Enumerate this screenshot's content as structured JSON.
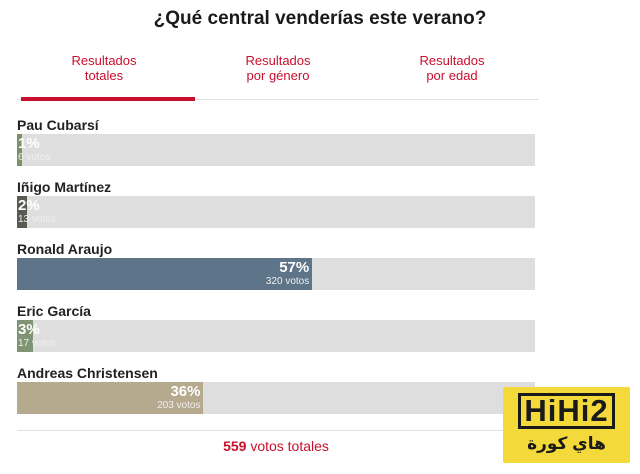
{
  "poll": {
    "title": "¿Qué central venderías este verano?",
    "tabs": [
      {
        "line1": "Resultados",
        "line2": "totales",
        "active": true
      },
      {
        "line1": "Resultados",
        "line2": "por género",
        "active": false
      },
      {
        "line1": "Resultados",
        "line2": "por edad",
        "active": false
      }
    ],
    "options": [
      {
        "name": "Pau Cubarsí",
        "percent_label": "1%",
        "percent": 1,
        "votes_label": "6 votos",
        "color": "#7e8f6a"
      },
      {
        "name": "Iñigo Martínez",
        "percent_label": "2%",
        "percent": 2,
        "votes_label": "13 votos",
        "color": "#5a5a52"
      },
      {
        "name": "Ronald Araujo",
        "percent_label": "57%",
        "percent": 57,
        "votes_label": "320 votos",
        "color": "#5e7488"
      },
      {
        "name": "Eric García",
        "percent_label": "3%",
        "percent": 3,
        "votes_label": "17 votos",
        "color": "#7f9473"
      },
      {
        "name": "Andreas Christensen",
        "percent_label": "36%",
        "percent": 36,
        "votes_label": "203 votos",
        "color": "#b5a98e"
      }
    ],
    "total": {
      "count": "559",
      "label": "votos totales"
    }
  },
  "watermark": {
    "brand": "HiHi2",
    "arabic": "هاي كورة",
    "color": "#f3d93a"
  },
  "colors": {
    "accent": "#c8102e",
    "track": "#dedede"
  }
}
